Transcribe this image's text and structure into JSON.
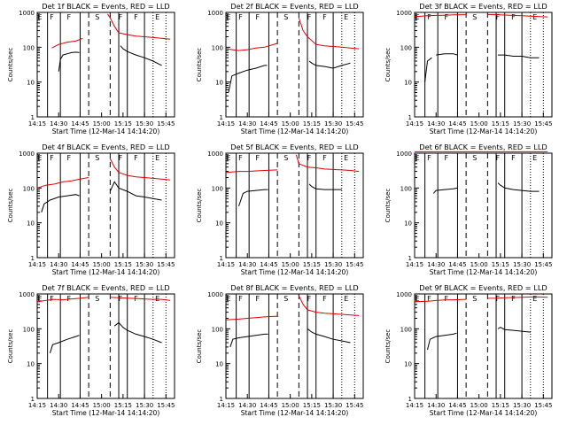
{
  "colors": {
    "events": "#000000",
    "lld": "#e00000",
    "axis": "#000000",
    "background": "#ffffff"
  },
  "shared": {
    "ylabel": "Counts/sec",
    "xlabel": "Start Time (12-Mar-14 14:14:20)",
    "xticks": [
      "14:15",
      "14:30",
      "14:45",
      "15:00",
      "15:15",
      "15:30",
      "15:45"
    ],
    "yticks": [
      "1",
      "10",
      "100",
      "1000"
    ],
    "region_labels": [
      "E",
      "F",
      "F",
      "S",
      "F",
      "F",
      "E"
    ]
  },
  "chart_data": [
    {
      "type": "line",
      "title": "Det 1f BLACK = Events, RED = LLD",
      "yscale": "log",
      "ylim": [
        1,
        1000
      ],
      "grid": false,
      "x_minutes_range": [
        14.25,
        15.85
      ],
      "series": [
        {
          "name": "Events",
          "color": "#000000",
          "segments": [
            {
              "x": [
                14.5,
                14.52,
                14.55,
                14.6,
                14.65,
                14.7,
                14.74
              ],
              "y": [
                20,
                45,
                60,
                65,
                70,
                72,
                70
              ]
            },
            {
              "x": [
                15.22,
                15.25,
                15.3,
                15.4,
                15.5,
                15.6,
                15.7
              ],
              "y": [
                110,
                90,
                75,
                60,
                50,
                40,
                30
              ]
            }
          ]
        },
        {
          "name": "LLD",
          "color": "#e00000",
          "segments": [
            {
              "x": [
                14.42,
                14.5,
                14.6,
                14.7,
                14.78
              ],
              "y": [
                95,
                120,
                140,
                150,
                180
              ]
            },
            {
              "x": [
                15.07,
                15.1,
                15.15,
                15.2,
                15.3,
                15.4,
                15.5,
                15.6,
                15.7,
                15.8
              ],
              "y": [
                900,
                700,
                400,
                260,
                230,
                210,
                200,
                190,
                180,
                170
              ]
            }
          ]
        }
      ]
    },
    {
      "type": "line",
      "title": "Det 2f BLACK = Events, RED = LLD",
      "yscale": "log",
      "ylim": [
        1,
        1000
      ],
      "grid": false,
      "x_minutes_range": [
        14.25,
        15.85
      ],
      "series": [
        {
          "name": "Events",
          "color": "#000000",
          "segments": [
            {
              "x": [
                14.28,
                14.32,
                14.4,
                14.5,
                14.6,
                14.7,
                14.73
              ],
              "y": [
                5,
                15,
                18,
                22,
                25,
                30,
                30
              ]
            },
            {
              "x": [
                15.22,
                15.25,
                15.3,
                15.4,
                15.5,
                15.6,
                15.7
              ],
              "y": [
                40,
                35,
                30,
                28,
                25,
                30,
                35
              ]
            }
          ]
        },
        {
          "name": "LLD",
          "color": "#e00000",
          "segments": [
            {
              "x": [
                14.25,
                14.4,
                14.5,
                14.6,
                14.7,
                14.85
              ],
              "y": [
                90,
                80,
                85,
                95,
                100,
                130
              ]
            },
            {
              "x": [
                15.1,
                15.15,
                15.2,
                15.3,
                15.4,
                15.5,
                15.6,
                15.7,
                15.8
              ],
              "y": [
                700,
                300,
                200,
                120,
                110,
                105,
                100,
                95,
                90
              ]
            }
          ]
        }
      ]
    },
    {
      "type": "line",
      "title": "Det 3f BLACK = Events, RED = LLD",
      "yscale": "log",
      "ylim": [
        1,
        1000
      ],
      "grid": false,
      "x_minutes_range": [
        14.25,
        15.85
      ],
      "series": [
        {
          "name": "Events",
          "color": "#000000",
          "segments": [
            {
              "x": [
                14.37,
                14.4,
                14.45
              ],
              "y": [
                10,
                40,
                50
              ]
            },
            {
              "x": [
                14.5,
                14.6,
                14.7,
                14.75
              ],
              "y": [
                60,
                65,
                65,
                60
              ]
            },
            {
              "x": [
                15.22,
                15.3,
                15.4,
                15.5,
                15.6,
                15.7
              ],
              "y": [
                60,
                60,
                55,
                55,
                50,
                50
              ]
            }
          ]
        },
        {
          "name": "LLD",
          "color": "#e00000",
          "segments": [
            {
              "x": [
                14.25,
                14.4,
                14.5,
                14.6,
                14.7,
                14.85
              ],
              "y": [
                750,
                800,
                820,
                830,
                850,
                860
              ]
            },
            {
              "x": [
                15.1,
                15.2,
                15.3,
                15.4,
                15.5,
                15.6,
                15.7,
                15.8
              ],
              "y": [
                870,
                860,
                840,
                820,
                800,
                780,
                760,
                740
              ]
            }
          ]
        }
      ]
    },
    {
      "type": "line",
      "title": "Det 4f BLACK = Events, RED = LLD",
      "yscale": "log",
      "ylim": [
        1,
        1000
      ],
      "grid": false,
      "x_minutes_range": [
        14.25,
        15.85
      ],
      "series": [
        {
          "name": "Events",
          "color": "#000000",
          "segments": [
            {
              "x": [
                14.3,
                14.33,
                14.4,
                14.5,
                14.6,
                14.7,
                14.74
              ],
              "y": [
                20,
                35,
                45,
                55,
                60,
                65,
                60
              ]
            },
            {
              "x": [
                15.1,
                15.15,
                15.2,
                15.3,
                15.4,
                15.5,
                15.6,
                15.7
              ],
              "y": [
                80,
                150,
                100,
                80,
                60,
                55,
                50,
                45
              ]
            }
          ]
        },
        {
          "name": "LLD",
          "color": "#e00000",
          "segments": [
            {
              "x": [
                14.25,
                14.35,
                14.45,
                14.55,
                14.65,
                14.75,
                14.85
              ],
              "y": [
                100,
                120,
                130,
                150,
                160,
                180,
                200
              ]
            },
            {
              "x": [
                15.1,
                15.15,
                15.2,
                15.3,
                15.4,
                15.5,
                15.6,
                15.7,
                15.8
              ],
              "y": [
                700,
                400,
                280,
                230,
                210,
                200,
                190,
                180,
                170
              ]
            }
          ]
        }
      ]
    },
    {
      "type": "line",
      "title": "Det 5f BLACK = Events, RED = LLD",
      "yscale": "log",
      "ylim": [
        1,
        1000
      ],
      "grid": false,
      "x_minutes_range": [
        14.25,
        15.85
      ],
      "series": [
        {
          "name": "Events",
          "color": "#000000",
          "segments": [
            {
              "x": [
                14.4,
                14.45,
                14.5,
                14.6,
                14.7,
                14.74
              ],
              "y": [
                30,
                70,
                80,
                85,
                90,
                90
              ]
            },
            {
              "x": [
                15.22,
                15.25,
                15.3,
                15.4,
                15.5,
                15.6
              ],
              "y": [
                130,
                110,
                95,
                90,
                90,
                90
              ]
            }
          ]
        },
        {
          "name": "LLD",
          "color": "#e00000",
          "segments": [
            {
              "x": [
                14.25,
                14.4,
                14.5,
                14.6,
                14.7,
                14.85
              ],
              "y": [
                280,
                300,
                300,
                310,
                320,
                330
              ]
            },
            {
              "x": [
                15.07,
                15.1,
                15.2,
                15.3,
                15.4,
                15.5,
                15.6,
                15.7,
                15.8
              ],
              "y": [
                900,
                500,
                400,
                380,
                350,
                340,
                330,
                320,
                300
              ]
            }
          ]
        }
      ]
    },
    {
      "type": "line",
      "title": "Det 6f BLACK = Events, RED = LLD",
      "yscale": "log",
      "ylim": [
        1,
        1000
      ],
      "grid": false,
      "x_minutes_range": [
        14.25,
        15.85
      ],
      "series": [
        {
          "name": "Events",
          "color": "#000000",
          "segments": [
            {
              "x": [
                14.47,
                14.5,
                14.6,
                14.7,
                14.75
              ],
              "y": [
                70,
                85,
                90,
                95,
                100
              ]
            },
            {
              "x": [
                15.22,
                15.25,
                15.3,
                15.4,
                15.5,
                15.6,
                15.7
              ],
              "y": [
                140,
                120,
                100,
                90,
                85,
                80,
                80
              ]
            }
          ]
        },
        {
          "name": "LLD",
          "color": "#e00000",
          "segments": [
            {
              "x": [
                14.25,
                14.4,
                14.6,
                14.8,
                15.0,
                15.2,
                15.4,
                15.6,
                15.8
              ],
              "y": [
                1100,
                1100,
                1100,
                1100,
                1100,
                1100,
                1100,
                1100,
                1100
              ]
            }
          ]
        }
      ]
    },
    {
      "type": "line",
      "title": "Det 7f BLACK = Events, RED = LLD",
      "yscale": "log",
      "ylim": [
        1,
        1000
      ],
      "grid": false,
      "x_minutes_range": [
        14.25,
        15.85
      ],
      "series": [
        {
          "name": "Events",
          "color": "#000000",
          "segments": [
            {
              "x": [
                14.4,
                14.43,
                14.5,
                14.6,
                14.7,
                14.74
              ],
              "y": [
                20,
                35,
                40,
                50,
                60,
                65
              ]
            },
            {
              "x": [
                15.15,
                15.2,
                15.25,
                15.3,
                15.4,
                15.5,
                15.6,
                15.7
              ],
              "y": [
                120,
                150,
                110,
                90,
                70,
                60,
                50,
                40
              ]
            }
          ]
        },
        {
          "name": "LLD",
          "color": "#e00000",
          "segments": [
            {
              "x": [
                14.25,
                14.35,
                14.45,
                14.55,
                14.65,
                14.75,
                14.85
              ],
              "y": [
                600,
                650,
                700,
                680,
                720,
                750,
                800
              ]
            },
            {
              "x": [
                15.1,
                15.2,
                15.3,
                15.4,
                15.5,
                15.6,
                15.7,
                15.8
              ],
              "y": [
                800,
                780,
                760,
                740,
                720,
                700,
                700,
                650
              ]
            }
          ]
        }
      ]
    },
    {
      "type": "line",
      "title": "Det 8f BLACK = Events, RED = LLD",
      "yscale": "log",
      "ylim": [
        1,
        1000
      ],
      "grid": false,
      "x_minutes_range": [
        14.25,
        15.85
      ],
      "series": [
        {
          "name": "Events",
          "color": "#000000",
          "segments": [
            {
              "x": [
                14.3,
                14.33,
                14.4,
                14.5,
                14.6,
                14.7,
                14.74
              ],
              "y": [
                30,
                50,
                55,
                60,
                65,
                70,
                70
              ]
            },
            {
              "x": [
                15.2,
                15.25,
                15.3,
                15.4,
                15.5,
                15.6,
                15.7
              ],
              "y": [
                100,
                80,
                70,
                60,
                50,
                45,
                40
              ]
            }
          ]
        },
        {
          "name": "LLD",
          "color": "#e00000",
          "segments": [
            {
              "x": [
                14.25,
                14.4,
                14.5,
                14.6,
                14.7,
                14.85
              ],
              "y": [
                180,
                190,
                200,
                210,
                220,
                230
              ]
            },
            {
              "x": [
                15.1,
                15.15,
                15.2,
                15.3,
                15.4,
                15.5,
                15.6,
                15.7,
                15.8
              ],
              "y": [
                900,
                500,
                350,
                300,
                280,
                270,
                260,
                250,
                240
              ]
            }
          ]
        }
      ]
    },
    {
      "type": "line",
      "title": "Det 9f BLACK = Events, RED = LLD",
      "yscale": "log",
      "ylim": [
        1,
        1000
      ],
      "grid": false,
      "x_minutes_range": [
        14.25,
        15.85
      ],
      "series": [
        {
          "name": "Events",
          "color": "#000000",
          "segments": [
            {
              "x": [
                14.4,
                14.43,
                14.5,
                14.6,
                14.7,
                14.74
              ],
              "y": [
                25,
                50,
                60,
                65,
                70,
                75
              ]
            },
            {
              "x": [
                15.22,
                15.25,
                15.3,
                15.4,
                15.5,
                15.6
              ],
              "y": [
                100,
                110,
                95,
                90,
                85,
                80
              ]
            }
          ]
        },
        {
          "name": "LLD",
          "color": "#e00000",
          "segments": [
            {
              "x": [
                14.25,
                14.4,
                14.5,
                14.6,
                14.7,
                14.85
              ],
              "y": [
                600,
                620,
                650,
                670,
                680,
                700
              ]
            },
            {
              "x": [
                15.1,
                15.2,
                15.3,
                15.4,
                15.5,
                15.6,
                15.7,
                15.8
              ],
              "y": [
                750,
                760,
                780,
                790,
                800,
                820,
                820,
                800
              ]
            }
          ]
        }
      ]
    }
  ]
}
